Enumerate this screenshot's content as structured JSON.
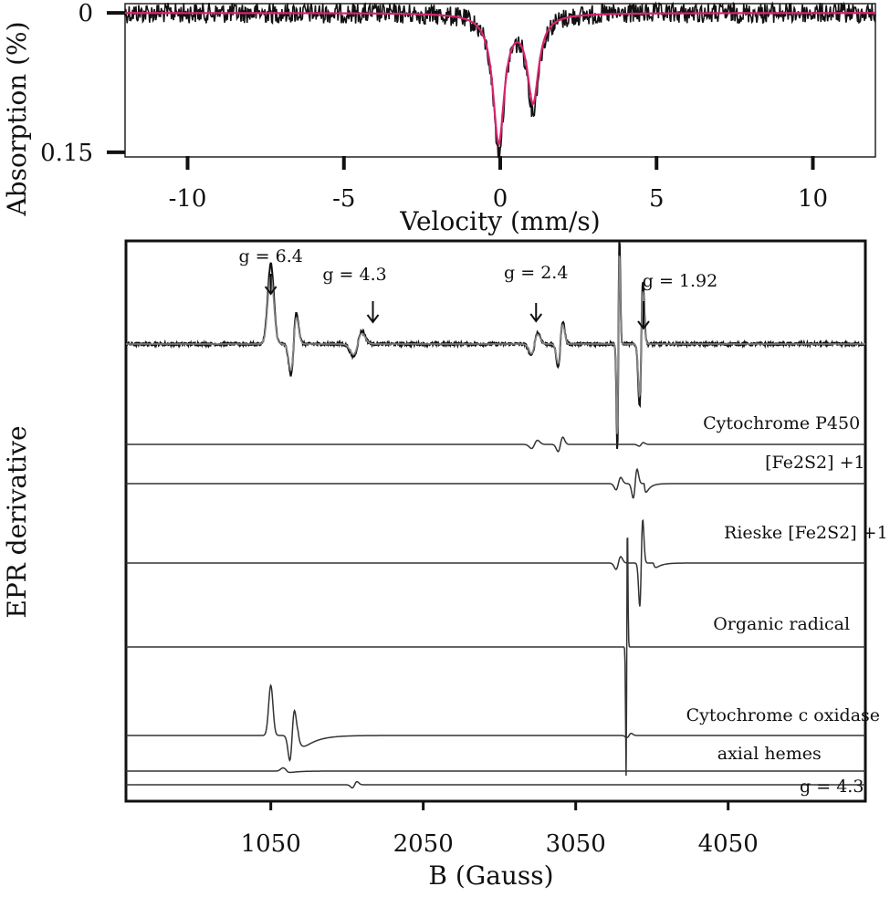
{
  "chart_data": [
    {
      "type": "line",
      "panel": "mossbauer",
      "xlabel": "Velocity (mm/s)",
      "ylabel": "Absorption (%)",
      "xlim": [
        -12,
        12
      ],
      "ylim": [
        0.155,
        -0.01
      ],
      "x_ticks": [
        -10,
        -5,
        0,
        5,
        10
      ],
      "x_tick_labels": [
        "-10",
        "-5",
        "0",
        "5",
        "10"
      ],
      "y_ticks": [
        0,
        0.15
      ],
      "y_tick_labels": [
        "0",
        "0.15"
      ],
      "series": [
        {
          "style": "data",
          "color": "#111111",
          "noise": 0.011,
          "lines": [
            {
              "center": -0.05,
              "width": 0.22,
              "depth": 0.145
            },
            {
              "center": 1.05,
              "width": 0.22,
              "depth": 0.1
            }
          ]
        },
        {
          "style": "fit",
          "color": "#d6246e",
          "lines": [
            {
              "center": -0.05,
              "width": 0.22,
              "depth": 0.138
            },
            {
              "center": 1.05,
              "width": 0.22,
              "depth": 0.093
            }
          ]
        }
      ]
    },
    {
      "type": "line",
      "panel": "epr",
      "xlabel": "B (Gauss)",
      "ylabel": "EPR derivative",
      "xlim": [
        100,
        4950
      ],
      "x_ticks": [
        1050,
        2050,
        3050,
        4050
      ],
      "x_tick_labels": [
        "1050",
        "2050",
        "3050",
        "4050"
      ],
      "annotations": [
        {
          "text": "g = 6.4",
          "x": 1050
        },
        {
          "text": "g = 4.3",
          "x": 1600
        },
        {
          "text": "g = 2.4",
          "x": 2790
        },
        {
          "text": "g = 1.92",
          "x": 3495
        }
      ],
      "traces": [
        {
          "label": "",
          "role": "experimental",
          "baseline": 1.0,
          "features": [
            {
              "x": 1050,
              "amp": 0.55,
              "w": 28,
              "shape": "peak"
            },
            {
              "x": 1200,
              "amp": 0.3,
              "w": 26,
              "shape": "deriv"
            },
            {
              "x": 1620,
              "amp": 0.12,
              "w": 40,
              "shape": "deriv"
            },
            {
              "x": 2780,
              "amp": 0.11,
              "w": 30,
              "shape": "deriv"
            },
            {
              "x": 2950,
              "amp": 0.22,
              "w": 22,
              "shape": "deriv"
            },
            {
              "x": 3330,
              "amp": 1.05,
              "w": 10,
              "shape": "deriv"
            },
            {
              "x": 3480,
              "amp": 0.6,
              "w": 16,
              "shape": "deriv"
            }
          ]
        },
        {
          "label": "Cytochrome P450",
          "label_x": 4400,
          "baseline": 0.0,
          "features": [
            {
              "x": 2780,
              "amp": 0.09,
              "w": 28,
              "shape": "deriv"
            },
            {
              "x": 2950,
              "amp": 0.16,
              "w": 22,
              "shape": "deriv"
            },
            {
              "x": 3480,
              "amp": 0.04,
              "w": 20,
              "shape": "deriv"
            }
          ]
        },
        {
          "label": "[Fe2S2] +1",
          "label_x": 4620,
          "baseline": 0.0,
          "features": [
            {
              "x": 3330,
              "amp": 0.12,
              "w": 22,
              "shape": "deriv"
            },
            {
              "x": 3440,
              "amp": 0.28,
              "w": 18,
              "shape": "deriv"
            },
            {
              "x": 3500,
              "amp": 0.22,
              "w": 28,
              "shape": "tail"
            }
          ]
        },
        {
          "label": "Rieske [Fe2S2] +1",
          "label_x": 4560,
          "baseline": 0.0,
          "features": [
            {
              "x": 3330,
              "amp": 0.11,
              "w": 22,
              "shape": "deriv"
            },
            {
              "x": 3480,
              "amp": 0.75,
              "w": 14,
              "shape": "deriv"
            },
            {
              "x": 3560,
              "amp": 0.1,
              "w": 40,
              "shape": "tail"
            }
          ]
        },
        {
          "label": "Organic radical",
          "label_x": 4400,
          "baseline": 0.0,
          "features": [
            {
              "x": 3385,
              "amp": 0.95,
              "w": 6,
              "shape": "deriv"
            }
          ]
        },
        {
          "label": "Cytochrome c oxidase",
          "label_x": 4410,
          "baseline": 0.0,
          "features": [
            {
              "x": 1050,
              "amp": 0.5,
              "w": 20,
              "shape": "peak"
            },
            {
              "x": 1190,
              "amp": 0.35,
              "w": 22,
              "shape": "deriv"
            },
            {
              "x": 1230,
              "amp": 0.2,
              "w": 90,
              "shape": "tail"
            },
            {
              "x": 3400,
              "amp": 0.03,
              "w": 20,
              "shape": "deriv"
            }
          ]
        },
        {
          "label": "axial hemes",
          "label_x": 4320,
          "baseline": 0.0,
          "features": [
            {
              "x": 1130,
              "amp": 0.05,
              "w": 22,
              "shape": "peak"
            },
            {
              "x": 1150,
              "amp": 0.04,
              "w": 60,
              "shape": "tail"
            }
          ]
        },
        {
          "label": "g = 4.3",
          "label_x": 4730,
          "baseline": 0.0,
          "features": [
            {
              "x": 1600,
              "amp": 0.06,
              "w": 22,
              "shape": "deriv"
            }
          ]
        }
      ]
    }
  ]
}
